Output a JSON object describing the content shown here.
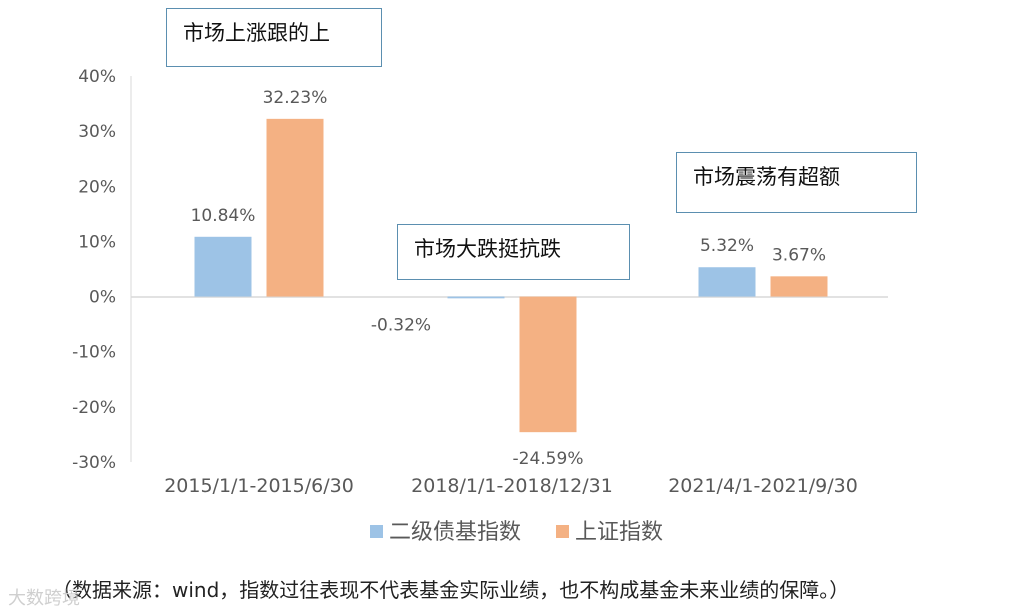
{
  "chart_data": {
    "type": "bar",
    "categories": [
      "2015/1/1-2015/6/30",
      "2018/1/1-2018/12/31",
      "2021/4/1-2021/9/30"
    ],
    "series": [
      {
        "name": "二级债基指数",
        "values": [
          10.84,
          -0.32,
          5.32
        ],
        "labels": [
          "10.84%",
          "-0.32%",
          "5.32%"
        ],
        "color": "#9dc3e6"
      },
      {
        "name": "上证指数",
        "values": [
          32.23,
          -24.59,
          3.67
        ],
        "labels": [
          "32.23%",
          "-24.59%",
          "3.67%"
        ],
        "color": "#f4b183"
      }
    ],
    "ylim": [
      -30,
      40
    ],
    "yticks": [
      "40%",
      "30%",
      "20%",
      "10%",
      "0%",
      "-10%",
      "-20%",
      "-30%"
    ],
    "grid": false,
    "legend_position": "bottom"
  },
  "annotations": [
    "市场上涨跟的上",
    "市场大跌挺抗跌",
    "市场震荡有超额"
  ],
  "source_note": "（数据来源：wind，指数过往表现不代表基金实际业绩，也不构成基金未来业绩的保障。）",
  "watermark": "大数跨境"
}
